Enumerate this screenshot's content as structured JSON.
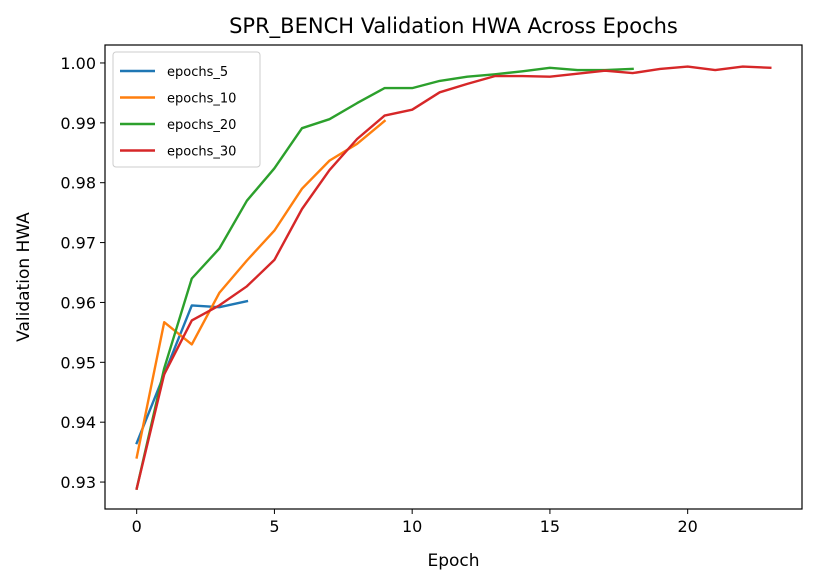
{
  "chart_data": {
    "type": "line",
    "title": "SPR_BENCH Validation HWA Across Epochs",
    "xlabel": "Epoch",
    "ylabel": "Validation HWA",
    "xlim": [
      -1.15,
      24.15
    ],
    "ylim": [
      0.9255,
      1.003
    ],
    "xticks": [
      0,
      5,
      10,
      15,
      20
    ],
    "yticks": [
      0.93,
      0.94,
      0.95,
      0.96,
      0.97,
      0.98,
      0.99,
      1.0
    ],
    "ytick_labels": [
      "0.93",
      "0.94",
      "0.95",
      "0.96",
      "0.97",
      "0.98",
      "0.99",
      "1.00"
    ],
    "grid": false,
    "legend_position": "top-left",
    "series": [
      {
        "name": "epochs_5",
        "color": "#1f77b4",
        "x": [
          0,
          1,
          2,
          3,
          4
        ],
        "values": [
          0.9365,
          0.948,
          0.9595,
          0.9592,
          0.9602
        ]
      },
      {
        "name": "epochs_10",
        "color": "#ff7f0e",
        "x": [
          0,
          1,
          2,
          3,
          4,
          5,
          6,
          7,
          8,
          9
        ],
        "values": [
          0.9341,
          0.9567,
          0.953,
          0.9616,
          0.967,
          0.972,
          0.979,
          0.9837,
          0.9865,
          0.9903
        ]
      },
      {
        "name": "epochs_20",
        "color": "#2ca02c",
        "x": [
          0,
          1,
          2,
          3,
          4,
          5,
          6,
          7,
          8,
          9,
          10,
          11,
          12,
          13,
          14,
          15,
          16,
          17,
          18
        ],
        "values": [
          0.9289,
          0.949,
          0.964,
          0.969,
          0.977,
          0.9824,
          0.9891,
          0.9906,
          0.9933,
          0.9958,
          0.9958,
          0.997,
          0.9977,
          0.9981,
          0.9986,
          0.9992,
          0.9988,
          0.9988,
          0.999
        ]
      },
      {
        "name": "epochs_30",
        "color": "#d62728",
        "x": [
          0,
          1,
          2,
          3,
          4,
          5,
          6,
          7,
          8,
          9,
          10,
          11,
          12,
          13,
          14,
          15,
          16,
          17,
          18,
          19,
          20,
          21,
          22,
          23
        ],
        "values": [
          0.9289,
          0.948,
          0.957,
          0.9595,
          0.9627,
          0.9671,
          0.9756,
          0.9821,
          0.9873,
          0.9912,
          0.9922,
          0.9951,
          0.9965,
          0.9978,
          0.9978,
          0.9977,
          0.9982,
          0.9987,
          0.9983,
          0.999,
          0.9994,
          0.9988,
          0.9994,
          0.9992
        ]
      }
    ]
  }
}
